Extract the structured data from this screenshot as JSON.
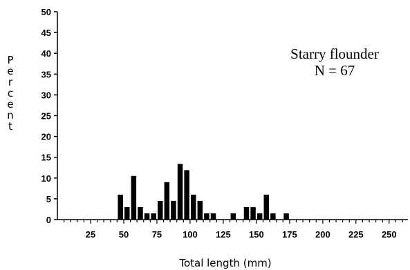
{
  "chart_data": {
    "type": "bar",
    "x": [
      47.5,
      52.5,
      57.5,
      62.5,
      67.5,
      72.5,
      77.5,
      82.5,
      87.5,
      92.5,
      97.5,
      102.5,
      107.5,
      112.5,
      117.5,
      132.5,
      142.5,
      147.5,
      152.5,
      157.5,
      162.5,
      172.5
    ],
    "values": [
      6.0,
      3.0,
      10.5,
      3.0,
      1.5,
      1.5,
      4.5,
      9.0,
      4.5,
      13.4,
      11.9,
      6.0,
      4.5,
      1.5,
      1.5,
      1.5,
      3.0,
      3.0,
      1.5,
      6.0,
      1.5,
      1.5
    ],
    "xlabel": "Total length (mm)",
    "ylabel": "Percent",
    "xlim": [
      0,
      260
    ],
    "ylim": [
      0,
      50
    ],
    "x_ticks": [
      25,
      50,
      75,
      100,
      125,
      150,
      175,
      200,
      225,
      250
    ],
    "y_ticks": [
      0,
      5,
      10,
      15,
      20,
      25,
      30,
      35,
      40,
      45,
      50
    ],
    "grid": false,
    "legend": "none",
    "annotation": {
      "line1": "Starry flounder",
      "line2": "N = 67"
    },
    "bar_color": "#000000"
  }
}
